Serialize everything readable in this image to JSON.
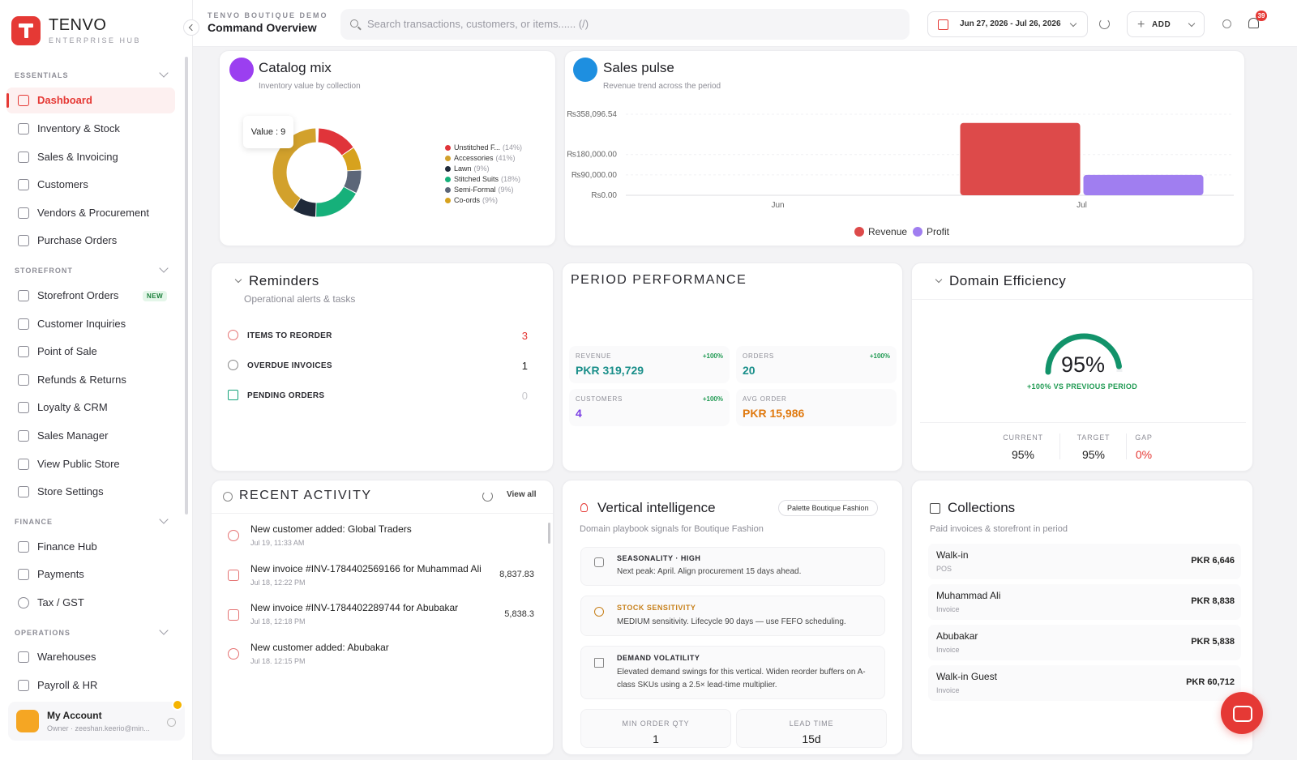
{
  "brand": {
    "name": "TENVO",
    "subtitle": "ENTERPRISE HUB"
  },
  "sidebar": {
    "sections": [
      {
        "title": "ESSENTIALS"
      },
      {
        "title": "STOREFRONT"
      },
      {
        "title": "FINANCE"
      },
      {
        "title": "OPERATIONS"
      }
    ],
    "items": [
      {
        "label": "Dashboard",
        "icon": "grid-icon",
        "active": true
      },
      {
        "label": "Inventory & Stock",
        "icon": "box-icon"
      },
      {
        "label": "Sales & Invoicing",
        "icon": "file-icon"
      },
      {
        "label": "Customers",
        "icon": "users-icon"
      },
      {
        "label": "Vendors & Procurement",
        "icon": "building-icon"
      },
      {
        "label": "Purchase Orders",
        "icon": "truck-icon"
      },
      {
        "label": "Storefront Orders",
        "icon": "package-icon",
        "badge": "NEW"
      },
      {
        "label": "Customer Inquiries",
        "icon": "inbox-icon"
      },
      {
        "label": "Point of Sale",
        "icon": "cart-icon"
      },
      {
        "label": "Refunds & Returns",
        "icon": "return-icon"
      },
      {
        "label": "Loyalty & CRM",
        "icon": "heart-icon"
      },
      {
        "label": "Sales Manager",
        "icon": "trend-icon"
      },
      {
        "label": "View Public Store",
        "icon": "external-link-icon"
      },
      {
        "label": "Store Settings",
        "icon": "gear-icon"
      },
      {
        "label": "Finance Hub",
        "icon": "bank-icon"
      },
      {
        "label": "Payments",
        "icon": "card-icon"
      },
      {
        "label": "Tax / GST",
        "icon": "dollar-icon"
      },
      {
        "label": "Warehouses",
        "icon": "warehouse-icon"
      },
      {
        "label": "Payroll & HR",
        "icon": "user-cog-icon"
      }
    ],
    "account": {
      "name": "My Account",
      "sub": "Owner · zeeshan.keerio@min..."
    }
  },
  "header": {
    "crumb": "TENVO BOUTIQUE DEMO",
    "title": "Command Overview",
    "search_placeholder": "Search transactions, customers, or items...... (/)",
    "date_range": "Jun 27, 2026 - Jul 26, 2026",
    "add_label": "ADD",
    "notif_count": "39"
  },
  "catalog": {
    "title": "Catalog mix",
    "subtitle": "Inventory value by collection",
    "tooltip": "Value : 9",
    "legend": [
      {
        "name": "Unstitched F...",
        "pct": "(14%)",
        "color": "#e0343a"
      },
      {
        "name": "Accessories",
        "pct": "(41%)",
        "color": "#d2a12c"
      },
      {
        "name": "Lawn",
        "pct": "(9%)",
        "color": "#1f2a3a"
      },
      {
        "name": "Stitched Suits",
        "pct": "(18%)",
        "color": "#16b07a"
      },
      {
        "name": "Semi-Formal",
        "pct": "(9%)",
        "color": "#5c6678"
      },
      {
        "name": "Co-ords",
        "pct": "(9%)",
        "color": "#d7a21e"
      }
    ]
  },
  "chart_data": {
    "type": "bar",
    "title": "Sales pulse",
    "subtitle": "Revenue trend across the period",
    "categories": [
      "Jun",
      "Jul"
    ],
    "series": [
      {
        "name": "Revenue",
        "color": "#dd4a4a",
        "values": [
          0,
          319729
        ]
      },
      {
        "name": "Profit",
        "color": "#a07ef0",
        "values": [
          0,
          90000
        ]
      }
    ],
    "y_ticks": [
      "₨358,096.54",
      "₨180,000.00",
      "₨90,000.00",
      "Rs0.00"
    ],
    "ylim": [
      0,
      358096.54
    ],
    "legend_position": "bottom"
  },
  "reminders": {
    "title": "Reminders",
    "subtitle": "Operational alerts & tasks",
    "items": [
      {
        "label": "ITEMS TO REORDER",
        "value": "3",
        "color": "#e53935"
      },
      {
        "label": "OVERDUE INVOICES",
        "value": "1",
        "color": "#222222"
      },
      {
        "label": "PENDING ORDERS",
        "value": "0",
        "color": "#c8c8cc"
      }
    ]
  },
  "performance": {
    "title": "PERIOD PERFORMANCE",
    "kpis": [
      {
        "label": "REVENUE",
        "value": "PKR 319,729",
        "trend": "+100%",
        "color": "#1a8f8a"
      },
      {
        "label": "ORDERS",
        "value": "20",
        "trend": "+100%",
        "color": "#1a8f8a"
      },
      {
        "label": "CUSTOMERS",
        "value": "4",
        "trend": "+100%",
        "color": "#7b3fe4"
      },
      {
        "label": "AVG ORDER",
        "value": "PKR 15,986",
        "trend": "",
        "color": "#e07a10"
      }
    ]
  },
  "efficiency": {
    "title": "Domain Efficiency",
    "value": "95%",
    "gauge_fraction": 0.95,
    "trend": "+100% VS PREVIOUS PERIOD",
    "stats": [
      {
        "label": "CURRENT",
        "value": "95%"
      },
      {
        "label": "TARGET",
        "value": "95%"
      },
      {
        "label": "GAP",
        "value": "0%"
      }
    ]
  },
  "activity": {
    "title": "RECENT ACTIVITY",
    "view_all": "View all",
    "items": [
      {
        "title": "New customer added: Global Traders",
        "time": "Jul 19, 11:33 AM",
        "amount": ""
      },
      {
        "title": "New invoice #INV-1784402569166 for Muhammad Ali",
        "time": "Jul 18, 12:22 PM",
        "amount": "8,837.83"
      },
      {
        "title": "New invoice #INV-1784402289744 for Abubakar",
        "time": "Jul 18, 12:18 PM",
        "amount": "5,838.3"
      },
      {
        "title": "New customer added: Abubakar",
        "time": "Jul 18, 12:15 PM",
        "amount": ""
      }
    ]
  },
  "vertical": {
    "title": "Vertical intelligence",
    "badge": "Palette Boutique Fashion",
    "subtitle": "Domain playbook signals for Boutique Fashion",
    "signals": [
      {
        "head": "SEASONALITY · HIGH",
        "text": "Next peak: April. Align procurement 15 days ahead.",
        "color": "#2a2a30"
      },
      {
        "head": "STOCK SENSITIVITY",
        "text": "MEDIUM sensitivity. Lifecycle 90 days — use FEFO scheduling.",
        "color": "#c7801a"
      },
      {
        "head": "DEMAND VOLATILITY",
        "text": "Elevated demand swings for this vertical. Widen reorder buffers on A-class SKUs using a 2.5× lead-time multiplier.",
        "color": "#2a2a30"
      }
    ],
    "min_order": {
      "label": "MIN ORDER QTY",
      "value": "1"
    },
    "lead_time": {
      "label": "LEAD TIME",
      "value": "15d"
    }
  },
  "collections": {
    "title": "Collections",
    "subtitle": "Paid invoices & storefront in period",
    "rows": [
      {
        "name": "Walk-in",
        "type": "POS",
        "amount": "PKR 6,646"
      },
      {
        "name": "Muhammad Ali",
        "type": "Invoice",
        "amount": "PKR 8,838"
      },
      {
        "name": "Abubakar",
        "type": "Invoice",
        "amount": "PKR 5,838"
      },
      {
        "name": "Walk-in Guest",
        "type": "Invoice",
        "amount": "PKR 60,712"
      }
    ]
  }
}
